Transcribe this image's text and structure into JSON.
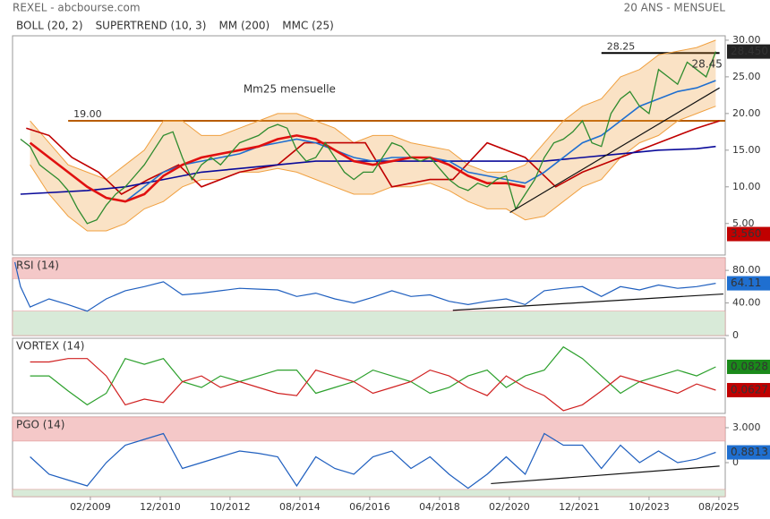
{
  "header": {
    "source": "REXEL - abcbourse.com",
    "period": "20 ANS - MENSUEL"
  },
  "chart_data": [
    {
      "type": "line",
      "xlim": [
        2007.04,
        2025.75
      ],
      "ylim": [
        0.7,
        30.6
      ],
      "yticks": [
        {
          "value": 5,
          "label": "5.00"
        },
        {
          "value": 10,
          "label": "10.00"
        },
        {
          "value": 15,
          "label": "15.00"
        },
        {
          "value": 20,
          "label": "20.00"
        },
        {
          "value": 25,
          "label": "25.00"
        },
        {
          "value": 30,
          "label": "30.00"
        }
      ],
      "series": [
        {
          "name": "BOLL (20, 2)",
          "color": "#f0a040",
          "x": [
            2007.5,
            2008,
            2008.5,
            2009,
            2009.5,
            2010,
            2010.5,
            2011,
            2011.5,
            2012,
            2012.5,
            2013,
            2013.5,
            2014,
            2014.5,
            2015,
            2015.5,
            2016,
            2016.5,
            2017,
            2017.5,
            2018,
            2018.5,
            2019,
            2019.5,
            2020,
            2020.5,
            2021,
            2021.5,
            2022,
            2022.5,
            2023,
            2023.5,
            2024,
            2024.5,
            2025,
            2025.5
          ],
          "upper": [
            19,
            16,
            13,
            12,
            11,
            13,
            15,
            19,
            19,
            17,
            17,
            18,
            19,
            20,
            20,
            19,
            18,
            16,
            17,
            17,
            16,
            15.5,
            15,
            13,
            12,
            12,
            13,
            16,
            19,
            21,
            22,
            25,
            26,
            28,
            28.5,
            29,
            30
          ],
          "lower": [
            13,
            9,
            6,
            4,
            4,
            5,
            7,
            8,
            10,
            11,
            11,
            12,
            12,
            12.5,
            12,
            11,
            10,
            9,
            9,
            10,
            10,
            10.5,
            9.5,
            8,
            7,
            7,
            5.5,
            6,
            8,
            10,
            11,
            14,
            16,
            17,
            19,
            20,
            21
          ]
        },
        {
          "name": "SUPERTREND (10, 3)",
          "color": "#c00000",
          "x": [
            2007.4,
            2008,
            2008.6,
            2009.3,
            2009.9,
            2010.6,
            2011.4,
            2012,
            2013,
            2014,
            2014.7,
            2015.5,
            2016.3,
            2017,
            2018,
            2018.6,
            2019.5,
            2020.5,
            2021.3,
            2022,
            2023,
            2024,
            2025,
            2025.6
          ],
          "values": [
            18,
            17,
            14,
            12,
            9,
            11,
            13,
            10,
            12,
            13,
            16,
            16,
            16,
            10,
            11,
            11,
            16,
            14,
            10,
            12,
            14,
            16,
            18,
            19
          ]
        },
        {
          "name": "MM (200)",
          "color": "#0a0a9a",
          "x": [
            2007.25,
            2009,
            2010,
            2011,
            2012,
            2013,
            2014,
            2015,
            2016,
            2017,
            2018,
            2019,
            2020,
            2021,
            2022,
            2023,
            2024,
            2025,
            2025.5
          ],
          "values": [
            9,
            9.5,
            10,
            11,
            12,
            12.5,
            13,
            13.5,
            13.5,
            13.5,
            13.5,
            13.5,
            13.5,
            13.5,
            14,
            14.5,
            15,
            15.2,
            15.5
          ]
        },
        {
          "name": "MMC (25)",
          "color": "#1f6fd0",
          "x": [
            2010,
            2010.5,
            2011,
            2011.5,
            2012,
            2012.5,
            2013,
            2013.5,
            2014,
            2014.5,
            2015,
            2015.5,
            2016,
            2016.5,
            2017,
            2017.5,
            2018,
            2018.5,
            2019,
            2019.5,
            2020,
            2020.5,
            2021,
            2021.5,
            2022,
            2022.5,
            2023,
            2023.5,
            2024,
            2024.5,
            2025,
            2025.5
          ],
          "values": [
            8,
            10,
            12,
            13,
            13.5,
            14,
            14.5,
            15.5,
            16,
            16.5,
            16,
            15,
            14,
            13.5,
            14,
            14,
            14,
            13.5,
            12,
            11.5,
            11,
            10.5,
            12,
            14,
            16,
            17,
            19,
            21,
            22,
            23,
            23.5,
            24.5
          ]
        },
        {
          "color": "#e01010",
          "x": [
            2007.5,
            2008,
            2008.5,
            2009,
            2009.5,
            2010,
            2010.5,
            2011,
            2011.5,
            2012,
            2012.5,
            2013,
            2013.5,
            2014,
            2014.5,
            2015,
            2015.5,
            2016,
            2016.5,
            2017,
            2017.5,
            2018,
            2018.5,
            2019,
            2019.5,
            2020,
            2020.5
          ],
          "values": [
            16,
            14,
            12,
            10,
            8.5,
            8,
            9,
            11.5,
            13,
            14,
            14.5,
            15,
            15.5,
            16.5,
            17,
            16.5,
            15,
            13.5,
            13,
            13.5,
            14,
            14,
            13,
            11.5,
            10.5,
            10.5,
            10
          ]
        },
        {
          "color": "#2e8b2e",
          "x": [
            2007.25,
            2007.5,
            2007.75,
            2008,
            2008.25,
            2008.5,
            2008.75,
            2009,
            2009.25,
            2009.5,
            2009.75,
            2010,
            2010.25,
            2010.5,
            2010.75,
            2011,
            2011.25,
            2011.5,
            2011.75,
            2012,
            2012.25,
            2012.5,
            2012.75,
            2013,
            2013.25,
            2013.5,
            2013.75,
            2014,
            2014.25,
            2014.5,
            2014.75,
            2015,
            2015.25,
            2015.5,
            2015.75,
            2016,
            2016.25,
            2016.5,
            2016.75,
            2017,
            2017.25,
            2017.5,
            2017.75,
            2018,
            2018.25,
            2018.5,
            2018.75,
            2019,
            2019.25,
            2019.5,
            2019.75,
            2020,
            2020.25,
            2020.5,
            2020.75,
            2021,
            2021.25,
            2021.5,
            2021.75,
            2022,
            2022.25,
            2022.5,
            2022.75,
            2023,
            2023.25,
            2023.5,
            2023.75,
            2024,
            2024.25,
            2024.5,
            2024.75,
            2025,
            2025.25,
            2025.5
          ],
          "values": [
            16.5,
            15.5,
            13,
            12,
            11,
            9.5,
            7,
            5,
            5.5,
            7.5,
            9,
            10,
            11.5,
            13,
            15,
            17,
            17.5,
            14,
            11,
            13,
            14,
            13,
            14.5,
            16,
            16.5,
            17,
            18,
            18.5,
            18,
            15,
            13.5,
            14,
            16,
            14,
            12,
            11,
            12,
            12,
            14,
            16,
            15.5,
            14,
            13.5,
            14,
            12.5,
            11,
            10,
            9.5,
            10.5,
            10,
            11,
            11.5,
            7,
            9,
            11,
            14,
            16,
            16.5,
            17.5,
            19,
            16,
            15.5,
            20,
            22,
            23,
            21,
            20,
            26,
            25,
            24,
            27,
            26,
            25,
            28.45
          ]
        }
      ],
      "hlines": [
        {
          "value": 19,
          "label": "19.00",
          "color": "#b85c00",
          "from": 2008.5,
          "to": 2025.75
        },
        {
          "value": 28.25,
          "label": "28.25",
          "color": "#000000",
          "from": 2022.5,
          "to": 2025.6
        }
      ],
      "trendlines": [
        [
          [
            2020.1,
            6.5
          ],
          [
            2025.6,
            23.5
          ]
        ]
      ],
      "annotations": [
        {
          "text": "Mm25 mensuelle",
          "x": 2013.1,
          "y": 23.3,
          "color": "#000000"
        },
        {
          "text": "28.45",
          "x": 2024.87,
          "y": 26.7,
          "color": "#e040e0"
        }
      ],
      "last_labels": [
        {
          "value": 28.45,
          "label": "28.450",
          "color": "#222222"
        },
        {
          "value": 3.56,
          "label": "3.560",
          "color": "#c00000"
        }
      ]
    },
    {
      "type": "line",
      "title": "RSI (14)",
      "xlim": [
        2007.04,
        2025.75
      ],
      "ylim": [
        0,
        95.5
      ],
      "yticks": [
        {
          "value": 0,
          "label": "0"
        },
        {
          "value": 40,
          "label": "40.00"
        },
        {
          "value": 80,
          "label": "80.00"
        }
      ],
      "bands": [
        {
          "from": 70,
          "to": 95.5,
          "color": "#f4c8c8"
        },
        {
          "from": 0,
          "to": 30,
          "color": "#d8ead8"
        }
      ],
      "series": [
        {
          "color": "#1f5fbf",
          "x": [
            2007.1,
            2007.25,
            2007.5,
            2008,
            2008.5,
            2009,
            2009.5,
            2010,
            2010.5,
            2011,
            2011.5,
            2012,
            2012.5,
            2013,
            2013.5,
            2014,
            2014.5,
            2015,
            2015.5,
            2016,
            2016.5,
            2017,
            2017.5,
            2018,
            2018.5,
            2019,
            2019.5,
            2020,
            2020.5,
            2021,
            2021.5,
            2022,
            2022.5,
            2023,
            2023.5,
            2024,
            2024.5,
            2025,
            2025.5
          ],
          "values": [
            90,
            60,
            35,
            45,
            38,
            30,
            45,
            55,
            60,
            66,
            50,
            52,
            55,
            58,
            57,
            56,
            48,
            52,
            45,
            40,
            47,
            55,
            48,
            50,
            42,
            38,
            42,
            45,
            38,
            55,
            58,
            60,
            48,
            60,
            56,
            62,
            58,
            60,
            64.11
          ]
        }
      ],
      "trendlines": [
        [
          [
            2018.6,
            31
          ],
          [
            2025.7,
            51
          ]
        ]
      ],
      "last_labels": [
        {
          "value": 64.11,
          "label": "64.11",
          "color": "#1f6fd0"
        }
      ]
    },
    {
      "type": "line",
      "title": "VORTEX (14)",
      "xlim": [
        2007.04,
        2025.75
      ],
      "ylim": [
        0.0426,
        0.1075
      ],
      "series": [
        {
          "color": "#2ca02c",
          "x": [
            2007.5,
            2008,
            2008.5,
            2009,
            2009.5,
            2010,
            2010.5,
            2011,
            2011.5,
            2012,
            2012.5,
            2013,
            2013.5,
            2014,
            2014.5,
            2015,
            2015.5,
            2016,
            2016.5,
            2017,
            2017.5,
            2018,
            2018.5,
            2019,
            2019.5,
            2020,
            2020.5,
            2021,
            2021.5,
            2022,
            2022.5,
            2023,
            2023.5,
            2024,
            2024.5,
            2025,
            2025.5
          ],
          "values": [
            0.075,
            0.075,
            0.062,
            0.05,
            0.06,
            0.09,
            0.085,
            0.09,
            0.07,
            0.065,
            0.075,
            0.07,
            0.075,
            0.08,
            0.08,
            0.06,
            0.065,
            0.07,
            0.08,
            0.075,
            0.07,
            0.06,
            0.065,
            0.075,
            0.08,
            0.065,
            0.075,
            0.08,
            0.1,
            0.09,
            0.075,
            0.06,
            0.07,
            0.075,
            0.08,
            0.075,
            0.0828
          ]
        },
        {
          "color": "#d02020",
          "x": [
            2007.5,
            2008,
            2008.5,
            2009,
            2009.5,
            2010,
            2010.5,
            2011,
            2011.5,
            2012,
            2012.5,
            2013,
            2013.5,
            2014,
            2014.5,
            2015,
            2015.5,
            2016,
            2016.5,
            2017,
            2017.5,
            2018,
            2018.5,
            2019,
            2019.5,
            2020,
            2020.5,
            2021,
            2021.5,
            2022,
            2022.5,
            2023,
            2023.5,
            2024,
            2024.5,
            2025,
            2025.5
          ],
          "values": [
            0.087,
            0.087,
            0.09,
            0.09,
            0.075,
            0.05,
            0.055,
            0.052,
            0.07,
            0.075,
            0.065,
            0.07,
            0.065,
            0.06,
            0.058,
            0.08,
            0.075,
            0.07,
            0.06,
            0.065,
            0.07,
            0.08,
            0.075,
            0.065,
            0.058,
            0.075,
            0.065,
            0.058,
            0.045,
            0.05,
            0.062,
            0.075,
            0.07,
            0.065,
            0.06,
            0.068,
            0.0627
          ]
        }
      ],
      "last_labels": [
        {
          "value": 0.0828,
          "label": "0.0828",
          "color": "#1a8a1a"
        },
        {
          "value": 0.0627,
          "label": "0.0627",
          "color": "#c00000"
        }
      ]
    },
    {
      "type": "line",
      "title": "PGO (14)",
      "xlim": [
        2007.04,
        2025.75
      ],
      "ylim": [
        -2.92,
        3.92
      ],
      "yticks": [
        {
          "value": 0,
          "label": "0"
        },
        {
          "value": 3,
          "label": "3.000"
        }
      ],
      "bands": [
        {
          "from": 1.85,
          "to": 3.92,
          "color": "#f4c8c8"
        },
        {
          "from": -2.92,
          "to": -2.3,
          "color": "#d8ead8"
        }
      ],
      "xticks": [
        {
          "value": 2009.083,
          "label": "02/2009"
        },
        {
          "value": 2010.917,
          "label": "12/2010"
        },
        {
          "value": 2012.75,
          "label": "10/2012"
        },
        {
          "value": 2014.583,
          "label": "08/2014"
        },
        {
          "value": 2016.417,
          "label": "06/2016"
        },
        {
          "value": 2018.25,
          "label": "04/2018"
        },
        {
          "value": 2020.083,
          "label": "02/2020"
        },
        {
          "value": 2021.917,
          "label": "12/2021"
        },
        {
          "value": 2023.75,
          "label": "10/2023"
        },
        {
          "value": 2025.583,
          "label": "08/2025"
        }
      ],
      "series": [
        {
          "color": "#1f5fbf",
          "x": [
            2007.5,
            2008,
            2008.5,
            2009,
            2009.5,
            2010,
            2010.5,
            2011,
            2011.5,
            2012,
            2012.5,
            2013,
            2013.5,
            2014,
            2014.5,
            2015,
            2015.5,
            2016,
            2016.5,
            2017,
            2017.5,
            2018,
            2018.5,
            2019,
            2019.5,
            2020,
            2020.5,
            2021,
            2021.5,
            2022,
            2022.5,
            2023,
            2023.5,
            2024,
            2024.5,
            2025,
            2025.5
          ],
          "values": [
            0.5,
            -1,
            -1.5,
            -2,
            0,
            1.5,
            2,
            2.5,
            -0.5,
            0,
            0.5,
            1,
            0.8,
            0.5,
            -2,
            0.5,
            -0.5,
            -1,
            0.5,
            1,
            -0.5,
            0.5,
            -1,
            -2.2,
            -1,
            0.5,
            -1,
            2.5,
            1.5,
            1.5,
            -0.5,
            1.5,
            0,
            1,
            0,
            0.3,
            0.8813
          ]
        }
      ],
      "trendlines": [
        [
          [
            2019.6,
            -1.8
          ],
          [
            2025.6,
            -0.3
          ]
        ]
      ],
      "last_labels": [
        {
          "value": 0.8813,
          "label": "0.8813",
          "color": "#1f6fd0"
        }
      ]
    }
  ]
}
